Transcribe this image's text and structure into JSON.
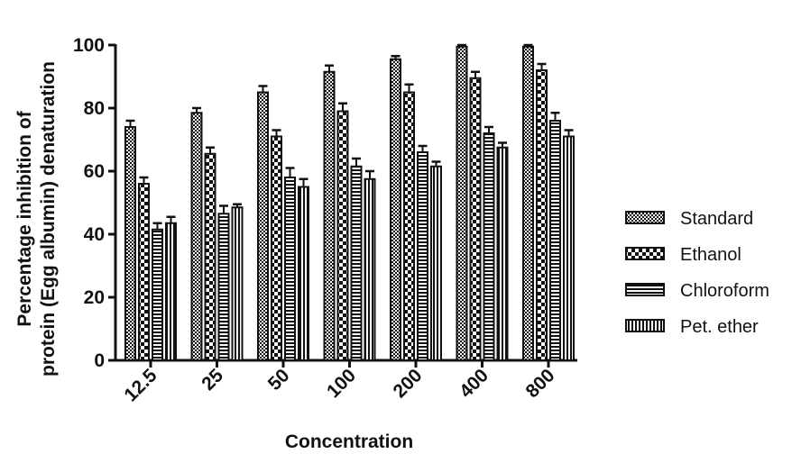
{
  "chart_data": {
    "type": "bar",
    "xlabel": "Concentration",
    "ylabel_lines": [
      "Percentage inhibition of",
      "protein (Egg albumin) denaturation"
    ],
    "categories": [
      "12.5",
      "25",
      "50",
      "100",
      "200",
      "400",
      "800"
    ],
    "ylim": [
      0,
      100
    ],
    "yticks": [
      "0",
      "20",
      "40",
      "60",
      "80",
      "100"
    ],
    "series": [
      {
        "name": "Standard",
        "pattern": "checker-fine",
        "values": [
          74,
          78.5,
          85,
          91.5,
          95.5,
          99.5,
          99.5
        ],
        "errors": [
          2,
          1.5,
          2,
          2,
          1,
          0.5,
          0.5
        ]
      },
      {
        "name": "Ethanol",
        "pattern": "checker-coarse",
        "values": [
          56,
          65.5,
          71,
          79,
          85,
          89.5,
          92
        ],
        "errors": [
          2,
          2,
          2,
          2.5,
          2.5,
          2,
          2
        ]
      },
      {
        "name": "Chloroform",
        "pattern": "horizontal",
        "values": [
          41.5,
          46.5,
          58,
          61.5,
          66,
          72,
          76
        ],
        "errors": [
          2,
          2.5,
          3,
          2.5,
          2,
          2,
          2.5
        ]
      },
      {
        "name": "Pet. ether",
        "pattern": "vertical",
        "values": [
          43.5,
          48.5,
          55,
          57.5,
          61.5,
          67.5,
          71
        ],
        "errors": [
          2,
          1,
          2.5,
          2.5,
          1.5,
          1.5,
          2
        ]
      }
    ],
    "legend_position": "right",
    "grid": false
  }
}
